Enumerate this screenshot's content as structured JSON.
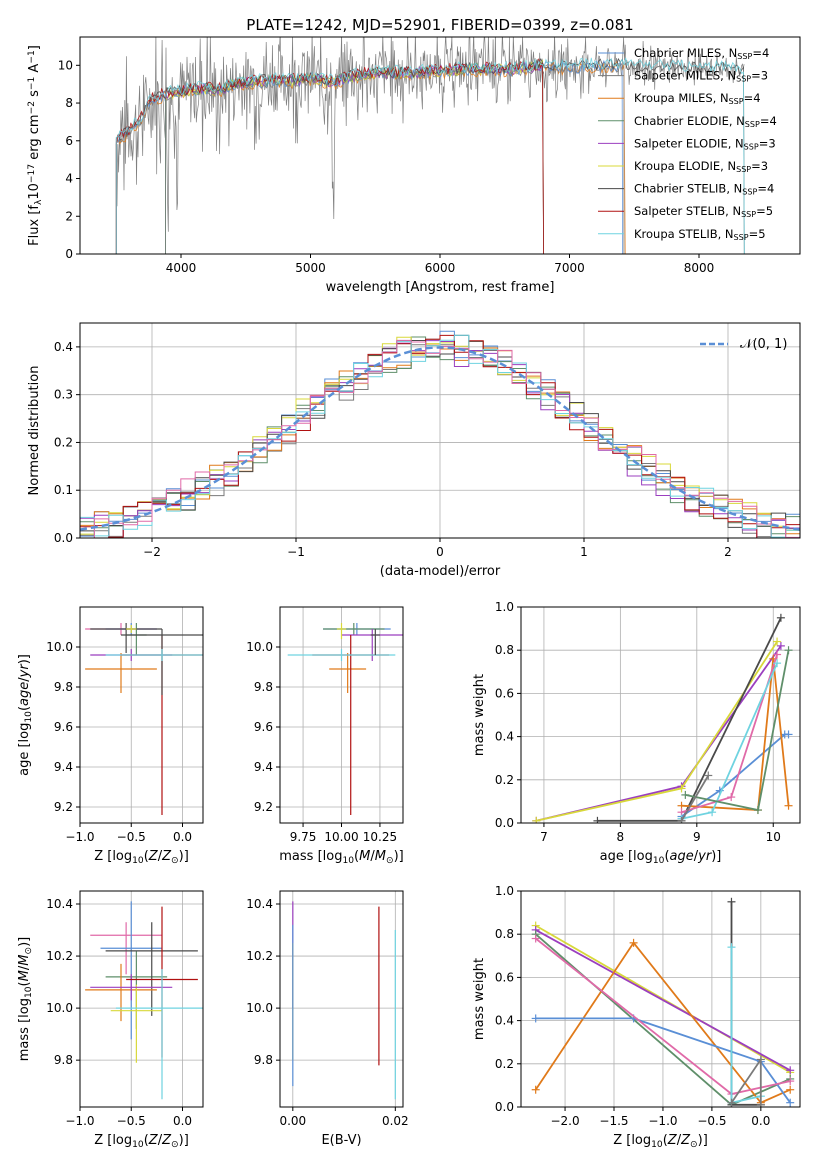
{
  "figure": {
    "title": "PLATE=1242, MJD=52901, FIBERID=0399, z=0.081"
  },
  "colors": {
    "chabrier_miles": "#5a8fd6",
    "salpeter_miles": "#7a7a7a",
    "kroupa_miles": "#e07a1a",
    "chabrier_elodie": "#5f8f6a",
    "salpeter_elodie": "#9b3fbf",
    "kroupa_elodie": "#d8d83a",
    "chabrier_stelib": "#4a4a4a",
    "salpeter_stelib": "#b01010",
    "kroupa_stelib": "#6fd3e0",
    "observed": "#808080",
    "pink": "#e06aa8"
  },
  "chart_data": [
    {
      "type": "line",
      "panel": "spectrum",
      "title": "PLATE=1242, MJD=52901, FIBERID=0399, z=0.081",
      "xlabel": "wavelength [Angstrom, rest frame]",
      "ylabel": "Flux [f_λ 10^-17 erg cm^-2 s^-1 A^-1]",
      "xlim": [
        3220,
        8780
      ],
      "ylim": [
        0,
        11.5
      ],
      "xticks": [
        "4000",
        "5000",
        "6000",
        "7000",
        "8000"
      ],
      "yticks": [
        "0",
        "2",
        "4",
        "6",
        "8",
        "10"
      ],
      "legend_placement": "top-right",
      "legend": [
        {
          "label": "Chabrier MILES, N",
          "sub": "SSP",
          "suffix": "=4",
          "color_key": "chabrier_miles"
        },
        {
          "label": "Salpeter MILES, N",
          "sub": "SSP",
          "suffix": "=3",
          "color_key": "salpeter_miles"
        },
        {
          "label": "Kroupa MILES, N",
          "sub": "SSP",
          "suffix": "=4",
          "color_key": "kroupa_miles"
        },
        {
          "label": "Chabrier ELODIE, N",
          "sub": "SSP",
          "suffix": "=4",
          "color_key": "chabrier_elodie"
        },
        {
          "label": "Salpeter ELODIE, N",
          "sub": "SSP",
          "suffix": "=3",
          "color_key": "salpeter_elodie"
        },
        {
          "label": "Kroupa ELODIE, N",
          "sub": "SSP",
          "suffix": "=3",
          "color_key": "kroupa_elodie"
        },
        {
          "label": "Chabrier STELIB, N",
          "sub": "SSP",
          "suffix": "=4",
          "color_key": "chabrier_stelib"
        },
        {
          "label": "Salpeter STELIB, N",
          "sub": "SSP",
          "suffix": "=5",
          "color_key": "salpeter_stelib"
        },
        {
          "label": "Kroupa STELIB, N",
          "sub": "SSP",
          "suffix": "=5",
          "color_key": "kroupa_stelib"
        }
      ],
      "model_shape": {
        "x": [
          3500,
          3600,
          3700,
          3750,
          3800,
          3900,
          4000,
          4100,
          4200,
          4300,
          4400,
          4500,
          4700,
          4861,
          5000,
          5175,
          5300,
          5500,
          5800,
          6000,
          6200,
          6400,
          6563,
          6700,
          6800,
          7000,
          7200,
          7400,
          7600,
          7800,
          8000,
          8200,
          8400
        ],
        "y": [
          6.0,
          6.5,
          7.2,
          8.0,
          8.3,
          8.5,
          8.6,
          8.7,
          8.8,
          8.7,
          9.0,
          9.1,
          9.2,
          9.2,
          9.3,
          9.1,
          9.4,
          9.6,
          9.6,
          9.7,
          9.8,
          9.8,
          9.8,
          9.9,
          10.0,
          9.9,
          10.0,
          10.0,
          9.9,
          9.9,
          9.8,
          9.8,
          9.7
        ]
      },
      "observed": {
        "range": [
          3500,
          8350
        ],
        "step": 6,
        "noise_amplitude": [
          3.5,
          0.6
        ],
        "absorption_features": [
          {
            "x": 3900,
            "depth": 6.5
          },
          {
            "x": 3970,
            "depth": 6.0
          },
          {
            "x": 4300,
            "depth": 2.0
          },
          {
            "x": 5175,
            "depth": 6.5
          },
          {
            "x": 6563,
            "depth": -1.2
          }
        ]
      },
      "model_edges": {
        "kroupa_miles": [
          3500,
          7430
        ],
        "salpeter_miles": [
          3500,
          7420
        ],
        "chabrier_miles": [
          3500,
          7410
        ],
        "kroupa_elodie": [
          3880,
          6800
        ],
        "salpeter_elodie": [
          3880,
          6800
        ],
        "chabrier_elodie": [
          3880,
          6800
        ],
        "chabrier_stelib": [
          3500,
          8350
        ],
        "salpeter_stelib": [
          3500,
          6800
        ],
        "kroupa_stelib": [
          3500,
          8350
        ]
      }
    },
    {
      "type": "line",
      "panel": "residuals",
      "xlabel": "(data-model)/error",
      "ylabel": "Normed distribution",
      "xlim": [
        -2.5,
        2.5
      ],
      "ylim": [
        0,
        0.45
      ],
      "xticks": [
        "−2",
        "−1",
        "0",
        "1",
        "2"
      ],
      "yticks": [
        "0.0",
        "0.1",
        "0.2",
        "0.3",
        "0.4"
      ],
      "grid": true,
      "legend_placement": "top-right",
      "gaussian_label": "𝒩(0, 1)",
      "gaussian_color_key": "chabrier_miles",
      "bin_width": 0.1,
      "histogram_series": [
        {
          "color_key": "chabrier_miles",
          "offset": 0.012
        },
        {
          "color_key": "salpeter_miles",
          "offset": -0.01
        },
        {
          "color_key": "kroupa_miles",
          "offset": 0.006
        },
        {
          "color_key": "chabrier_elodie",
          "offset": -0.004
        },
        {
          "color_key": "salpeter_elodie",
          "offset": -0.014
        },
        {
          "color_key": "kroupa_elodie",
          "offset": 0.014
        },
        {
          "color_key": "chabrier_stelib",
          "offset": 0.002
        },
        {
          "color_key": "salpeter_stelib",
          "offset": -0.006
        },
        {
          "color_key": "kroupa_stelib",
          "offset": 0.008
        },
        {
          "color_key": "pink",
          "offset": 0.016
        }
      ]
    },
    {
      "type": "scatter",
      "panel": "age_vs_Z",
      "xlabel": "Z [log10(Z/Z⊙)]",
      "ylabel": "age  [log10(age/yr)]",
      "xlim": [
        -1.0,
        0.2
      ],
      "ylim": [
        9.12,
        10.2
      ],
      "xticks": [
        "−1.0",
        "−0.5",
        "0.0"
      ],
      "yticks": [
        "9.2",
        "9.4",
        "9.6",
        "9.8",
        "10.0"
      ],
      "crosses": [
        {
          "x": -0.6,
          "y": 10.09,
          "xerr": 0.35,
          "yerr": [
            0.03,
            0.03
          ],
          "color_key": "pink"
        },
        {
          "x": -0.5,
          "y": 10.09,
          "xerr": 0.25,
          "yerr": [
            0.03,
            0.03
          ],
          "color_key": "chabrier_miles"
        },
        {
          "x": -0.45,
          "y": 10.06,
          "xerr": 0.1,
          "yerr": [
            0.1,
            0.06
          ],
          "color_key": "chabrier_elodie"
        },
        {
          "x": -0.55,
          "y": 10.09,
          "xerr": 0.35,
          "yerr": [
            0.12,
            0.03
          ],
          "color_key": "chabrier_stelib"
        },
        {
          "x": -0.6,
          "y": 9.89,
          "xerr": 0.35,
          "yerr": [
            0.12,
            0.08
          ],
          "color_key": "kroupa_miles"
        },
        {
          "x": -0.5,
          "y": 10.09,
          "xerr": 0.05,
          "yerr": [
            0.02,
            0.02
          ],
          "color_key": "kroupa_elodie"
        },
        {
          "x": -0.5,
          "y": 9.96,
          "xerr": 0.4,
          "yerr": [
            0.03,
            0.03
          ],
          "color_key": "salpeter_elodie"
        },
        {
          "x": -0.2,
          "y": 9.96,
          "xerr": 0.4,
          "yerr": [
            0.8,
            0.1
          ],
          "color_key": "salpeter_stelib"
        },
        {
          "x": -0.2,
          "y": 10.06,
          "xerr": 0.4,
          "yerr": [
            0.3,
            0.03
          ],
          "color_key": "chabrier_stelib"
        },
        {
          "x": -0.2,
          "y": 9.96,
          "xerr": 0.55,
          "yerr": [
            0.03,
            0.03
          ],
          "color_key": "kroupa_stelib"
        }
      ]
    },
    {
      "type": "scatter",
      "panel": "age_vs_mass",
      "xlabel": "mass [log10(M/M⊙)]",
      "ylabel": "",
      "xlim": [
        9.6,
        10.4
      ],
      "ylim": [
        9.12,
        10.2
      ],
      "xticks": [
        "9.75",
        "10.00",
        "10.25"
      ],
      "yticks": [
        "9.2",
        "9.4",
        "9.6",
        "9.8",
        "10.0"
      ],
      "crosses": [
        {
          "x": 10.1,
          "y": 10.09,
          "xerr": 0.22,
          "yerr": [
            0.03,
            0.03
          ],
          "color_key": "chabrier_miles"
        },
        {
          "x": 10.08,
          "y": 10.09,
          "xerr": 0.2,
          "yerr": [
            0.03,
            0.03
          ],
          "color_key": "chabrier_elodie"
        },
        {
          "x": 10.2,
          "y": 10.06,
          "xerr": 0.2,
          "yerr": [
            0.13,
            0.03
          ],
          "color_key": "salpeter_elodie"
        },
        {
          "x": 10.04,
          "y": 9.89,
          "xerr": 0.12,
          "yerr": [
            0.12,
            0.08
          ],
          "color_key": "kroupa_miles"
        },
        {
          "x": 10.06,
          "y": 9.96,
          "xerr": 0.25,
          "yerr": [
            0.8,
            0.1
          ],
          "color_key": "salpeter_stelib"
        },
        {
          "x": 10.0,
          "y": 9.96,
          "xerr": 0.35,
          "yerr": [
            0.03,
            0.03
          ],
          "color_key": "kroupa_stelib"
        },
        {
          "x": 10.22,
          "y": 10.06,
          "xerr": 0.03,
          "yerr": [
            0.1,
            0.03
          ],
          "color_key": "chabrier_stelib"
        },
        {
          "x": 10.0,
          "y": 10.09,
          "xerr": 0.03,
          "yerr": [
            0.05,
            0.03
          ],
          "color_key": "kroupa_elodie"
        }
      ]
    },
    {
      "type": "line",
      "panel": "mass_weight_vs_age",
      "xlabel": "age  [log10(age/yr)]",
      "ylabel": "mass weight",
      "xlim": [
        6.7,
        10.35
      ],
      "ylim": [
        0,
        1.0
      ],
      "xticks": [
        "7",
        "8",
        "9",
        "10"
      ],
      "yticks": [
        "0.0",
        "0.2",
        "0.4",
        "0.6",
        "0.8",
        "1.0"
      ],
      "grid": true,
      "series": [
        {
          "color_key": "salpeter_elodie",
          "x": [
            6.9,
            8.8,
            10.1
          ],
          "y": [
            0.01,
            0.17,
            0.82
          ]
        },
        {
          "color_key": "kroupa_elodie",
          "x": [
            6.9,
            8.8,
            10.05
          ],
          "y": [
            0.01,
            0.16,
            0.84
          ]
        },
        {
          "color_key": "chabrier_stelib",
          "x": [
            7.7,
            8.8,
            10.1
          ],
          "y": [
            0.01,
            0.01,
            0.95
          ]
        },
        {
          "color_key": "chabrier_miles",
          "x": [
            8.8,
            9.3,
            10.15,
            10.2
          ],
          "y": [
            0.03,
            0.15,
            0.41,
            0.41
          ]
        },
        {
          "color_key": "kroupa_miles",
          "x": [
            8.8,
            9.8,
            10.0,
            10.2
          ],
          "y": [
            0.08,
            0.06,
            0.76,
            0.08
          ]
        },
        {
          "color_key": "pink",
          "x": [
            8.8,
            9.45,
            10.05
          ],
          "y": [
            0.05,
            0.12,
            0.78
          ]
        },
        {
          "color_key": "kroupa_stelib",
          "x": [
            8.8,
            9.2,
            10.05
          ],
          "y": [
            0.02,
            0.05,
            0.74
          ]
        },
        {
          "color_key": "chabrier_elodie",
          "x": [
            8.85,
            9.8,
            10.2
          ],
          "y": [
            0.13,
            0.06,
            0.8
          ]
        },
        {
          "color_key": "salpeter_miles",
          "x": [
            8.8,
            9.15
          ],
          "y": [
            0.01,
            0.22
          ]
        }
      ]
    },
    {
      "type": "scatter",
      "panel": "mass_vs_Z",
      "xlabel": "Z [log10(Z/Z⊙)]",
      "ylabel": "mass [log10(M/M⊙)]",
      "xlim": [
        -1.0,
        0.2
      ],
      "ylim": [
        9.62,
        10.45
      ],
      "xticks": [
        "−1.0",
        "−0.5",
        "0.0"
      ],
      "yticks": [
        "9.8",
        "10.0",
        "10.2",
        "10.4"
      ],
      "crosses": [
        {
          "x": -0.55,
          "y": 10.28,
          "xerr": 0.35,
          "yerr": [
            0.15,
            0.05
          ],
          "color_key": "pink"
        },
        {
          "x": -0.5,
          "y": 10.23,
          "xerr": 0.3,
          "yerr": [
            0.35,
            0.18
          ],
          "color_key": "chabrier_miles"
        },
        {
          "x": -0.45,
          "y": 10.12,
          "xerr": 0.3,
          "yerr": [
            0.2,
            0.1
          ],
          "color_key": "chabrier_elodie"
        },
        {
          "x": -0.3,
          "y": 10.22,
          "xerr": 0.45,
          "yerr": [
            0.25,
            0.11
          ],
          "color_key": "chabrier_stelib"
        },
        {
          "x": -0.6,
          "y": 10.07,
          "xerr": 0.35,
          "yerr": [
            0.12,
            0.1
          ],
          "color_key": "kroupa_miles"
        },
        {
          "x": -0.45,
          "y": 9.99,
          "xerr": 0.25,
          "yerr": [
            0.2,
            0.1
          ],
          "color_key": "kroupa_elodie"
        },
        {
          "x": -0.5,
          "y": 10.08,
          "xerr": 0.4,
          "yerr": [
            0.05,
            0.05
          ],
          "color_key": "salpeter_elodie"
        },
        {
          "x": -0.2,
          "y": 10.11,
          "xerr": 0.35,
          "yerr": [
            0.3,
            0.28
          ],
          "color_key": "salpeter_stelib"
        },
        {
          "x": -0.2,
          "y": 10.0,
          "xerr": 0.45,
          "yerr": [
            0.35,
            0.15
          ],
          "color_key": "kroupa_stelib"
        }
      ]
    },
    {
      "type": "scatter",
      "panel": "mass_vs_ebv",
      "xlabel": "E(B-V)",
      "ylabel": "",
      "xlim": [
        -0.0025,
        0.0215
      ],
      "ylim": [
        9.62,
        10.45
      ],
      "xticks": [
        "0.00",
        "0.02"
      ],
      "yticks": [
        "9.8",
        "10.0",
        "10.2",
        "10.4"
      ],
      "bars": [
        {
          "x": 0.0,
          "y0": 10.0,
          "y1": 10.41,
          "color_key": "salpeter_elodie"
        },
        {
          "x": 0.0,
          "y0": 9.8,
          "y1": 10.25,
          "color_key": "kroupa_elodie"
        },
        {
          "x": 0.0,
          "y0": 9.7,
          "y1": 10.32,
          "color_key": "chabrier_miles"
        },
        {
          "x": 0.0168,
          "y0": 9.78,
          "y1": 10.39,
          "color_key": "salpeter_stelib"
        },
        {
          "x": 0.02,
          "y0": 9.65,
          "y1": 10.3,
          "color_key": "kroupa_stelib"
        }
      ]
    },
    {
      "type": "line",
      "panel": "mass_weight_vs_Z",
      "xlabel": "Z [log10(Z/Z⊙)]",
      "ylabel": "mass weight",
      "xlim": [
        -2.45,
        0.4
      ],
      "ylim": [
        0,
        1.0
      ],
      "xticks": [
        "−2.0",
        "−1.5",
        "−1.0",
        "−0.5",
        "0.0"
      ],
      "yticks": [
        "0.0",
        "0.2",
        "0.4",
        "0.6",
        "0.8",
        "1.0"
      ],
      "grid": true,
      "series": [
        {
          "color_key": "kroupa_elodie",
          "x": [
            -2.3,
            0.3
          ],
          "y": [
            0.84,
            0.16
          ]
        },
        {
          "color_key": "salpeter_elodie",
          "x": [
            -2.3,
            0.3
          ],
          "y": [
            0.82,
            0.17
          ]
        },
        {
          "color_key": "chabrier_elodie",
          "x": [
            -2.3,
            -0.3,
            0.3
          ],
          "y": [
            0.8,
            0.01,
            0.13
          ]
        },
        {
          "color_key": "kroupa_miles",
          "x": [
            -2.3,
            -1.3,
            0.0,
            0.3
          ],
          "y": [
            0.08,
            0.76,
            0.02,
            0.08
          ]
        },
        {
          "color_key": "chabrier_miles",
          "x": [
            -2.3,
            -1.3,
            0.0,
            0.3
          ],
          "y": [
            0.41,
            0.41,
            0.21,
            0.02
          ]
        },
        {
          "color_key": "pink",
          "x": [
            -2.3,
            -0.3,
            0.3
          ],
          "y": [
            0.78,
            0.06,
            0.12
          ]
        },
        {
          "color_key": "chabrier_stelib",
          "x": [
            -0.3,
            -0.3,
            0.0
          ],
          "y": [
            0.95,
            0.01,
            0.01
          ]
        },
        {
          "color_key": "kroupa_stelib",
          "x": [
            -0.3,
            -0.3,
            0.0
          ],
          "y": [
            0.74,
            0.02,
            0.05
          ]
        },
        {
          "color_key": "salpeter_miles",
          "x": [
            -0.3,
            0.0,
            0.0
          ],
          "y": [
            0.02,
            0.22,
            0.01
          ]
        }
      ]
    }
  ]
}
